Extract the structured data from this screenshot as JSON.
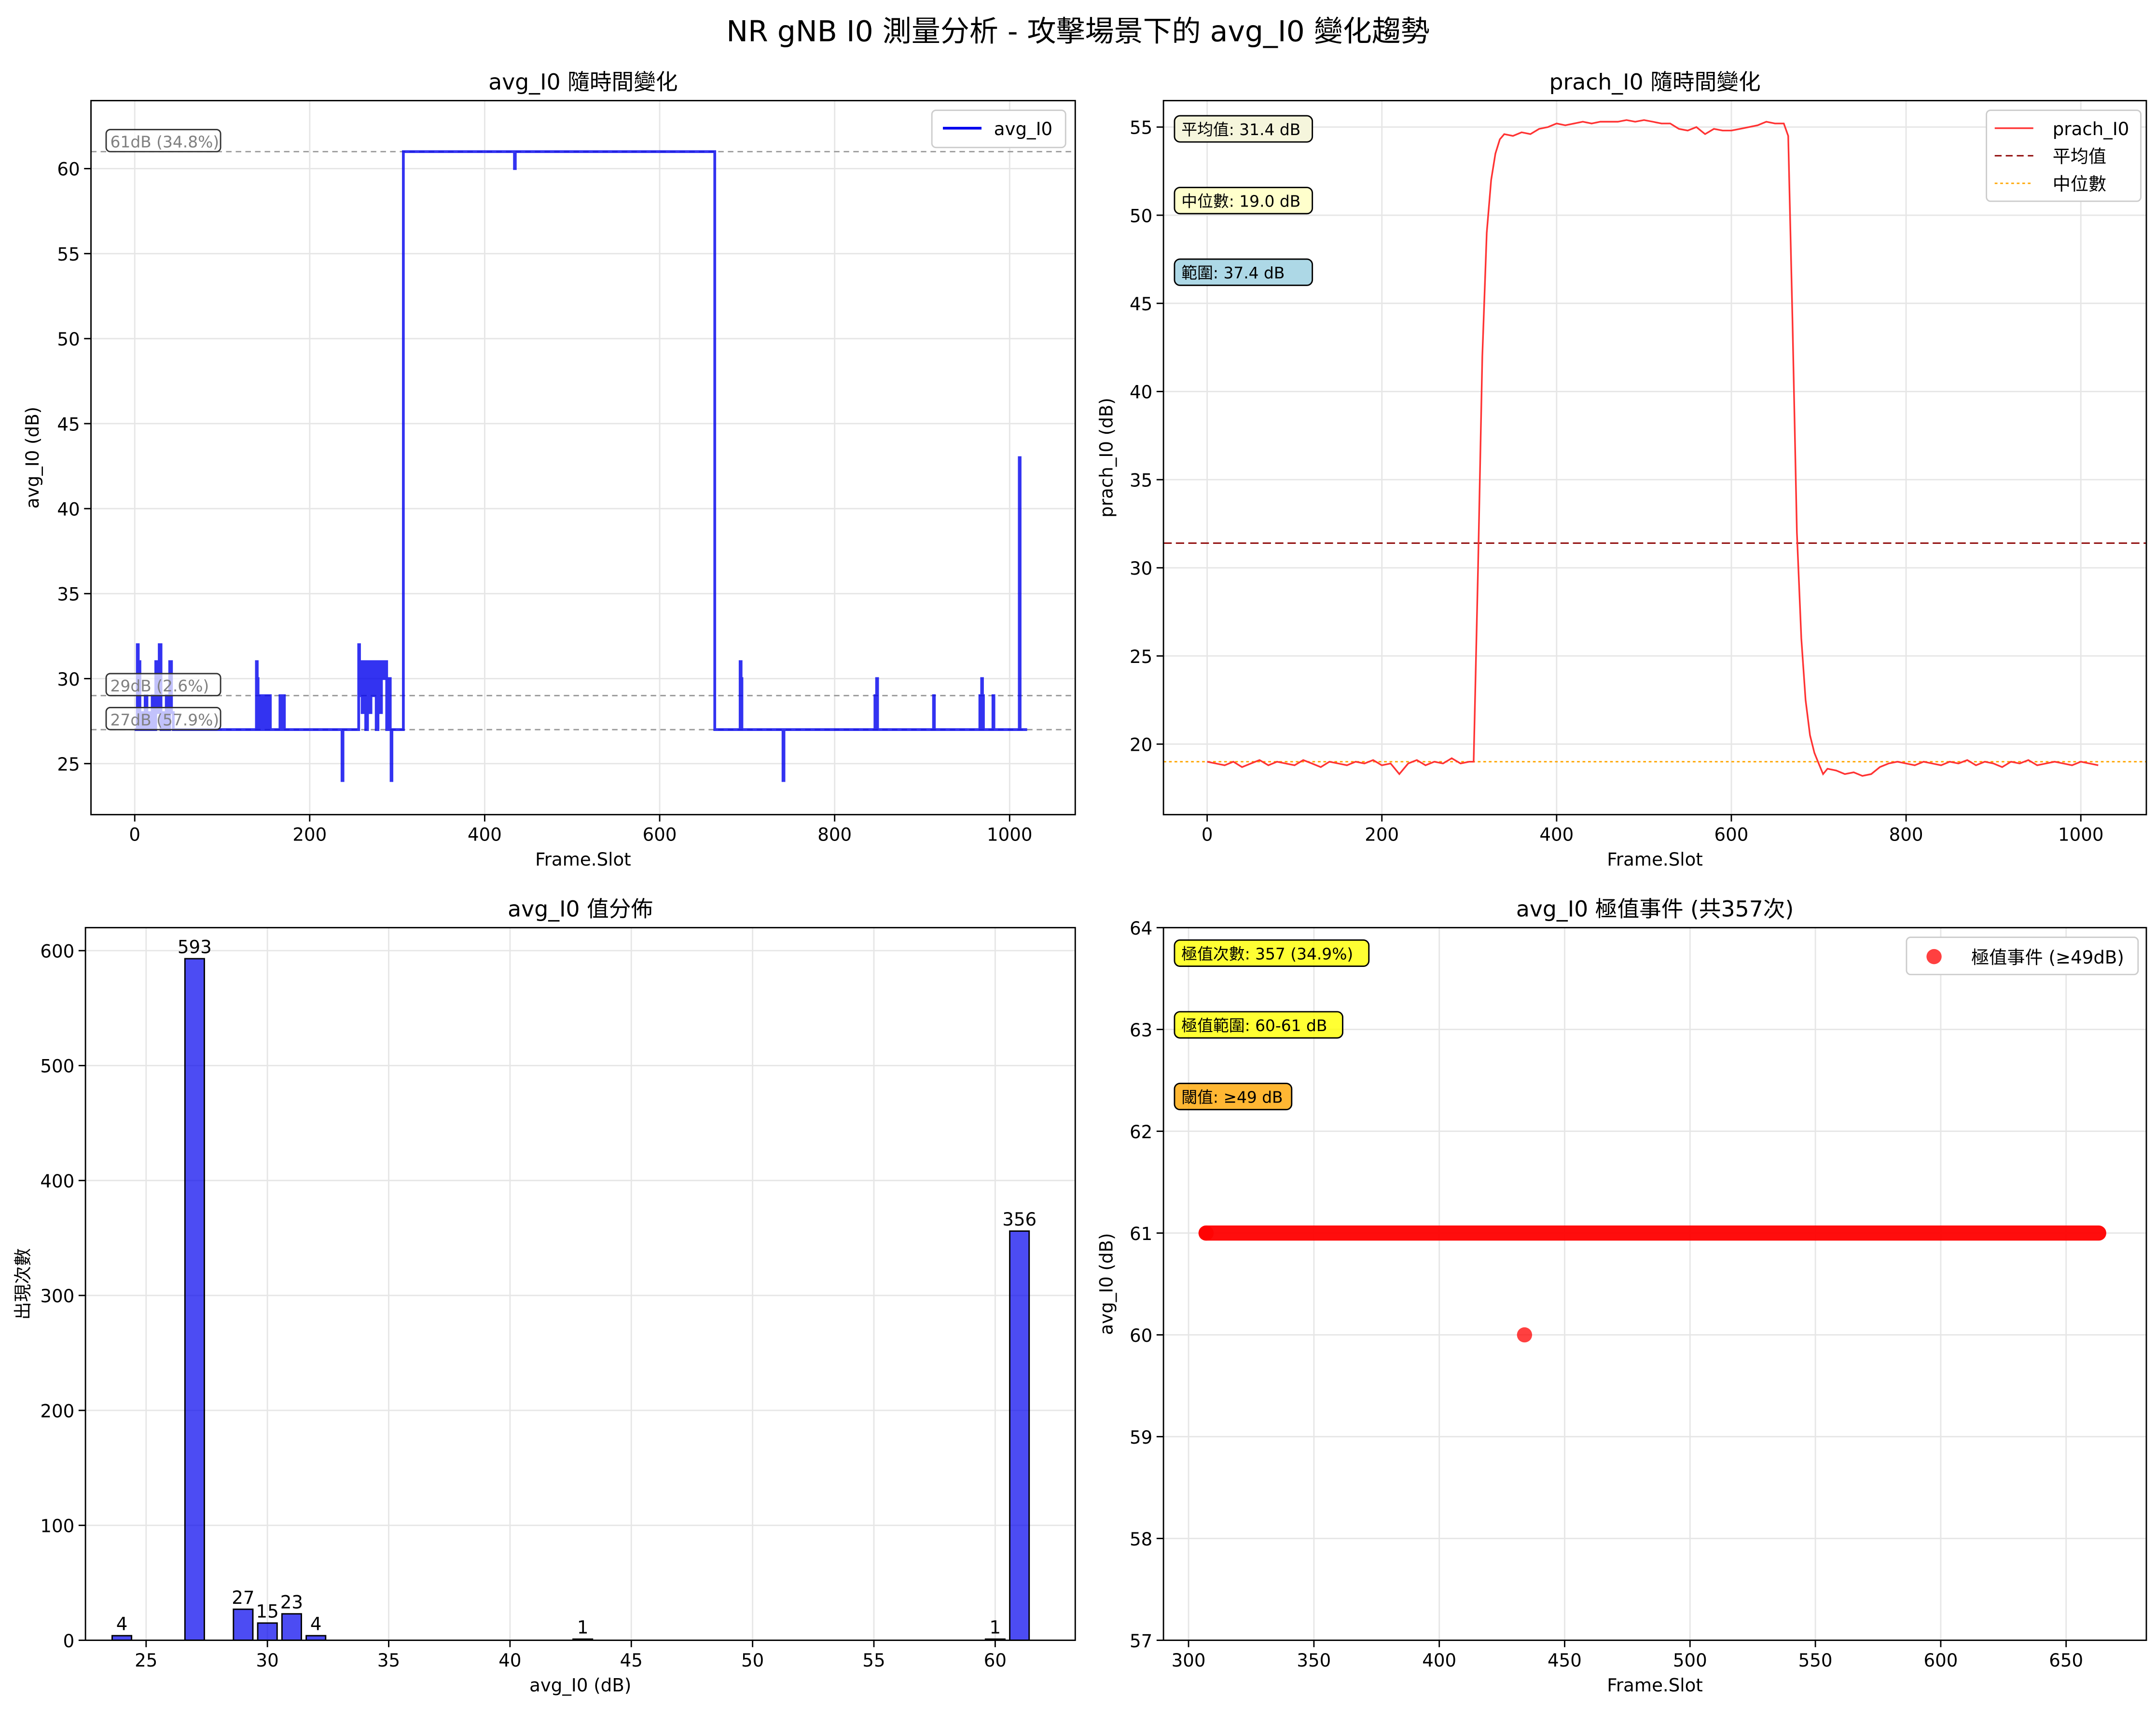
{
  "suptitle": "NR gNB I0 測量分析 - 攻擊場景下的 avg_I0 變化趨勢",
  "chart_data": [
    {
      "id": "p1",
      "type": "line",
      "title": "avg_I0 隨時間變化",
      "xlabel": "Frame.Slot",
      "ylabel": "avg_I0 (dB)",
      "xlim": [
        -50,
        1075
      ],
      "ylim": [
        22,
        64
      ],
      "xticks": [
        0,
        200,
        400,
        600,
        800,
        1000
      ],
      "yticks": [
        25,
        30,
        35,
        40,
        45,
        50,
        55,
        60
      ],
      "grid": true,
      "legend": {
        "position": "top-right",
        "entries": [
          "avg_I0"
        ]
      },
      "series": [
        {
          "name": "avg_I0",
          "color": "#0000ee",
          "x": [
            0,
            2,
            3,
            4,
            5,
            6,
            8,
            10,
            12,
            14,
            16,
            18,
            20,
            22,
            24,
            26,
            28,
            30,
            32,
            34,
            36,
            38,
            40,
            42,
            44,
            60,
            100,
            138,
            139,
            140,
            141,
            142,
            145,
            147,
            150,
            152,
            155,
            165,
            166,
            167,
            170,
            171,
            236,
            237,
            238,
            255,
            256,
            257,
            258,
            260,
            262,
            264,
            266,
            268,
            270,
            272,
            274,
            276,
            278,
            280,
            282,
            284,
            286,
            288,
            290,
            292,
            293,
            294,
            295,
            297,
            298,
            299,
            300,
            306,
            307,
            433,
            434,
            435,
            662,
            663,
            691,
            692,
            693,
            694,
            740,
            741,
            742,
            845,
            846,
            847,
            848,
            849,
            912,
            913,
            914,
            965,
            966,
            967,
            968,
            969,
            970,
            980,
            981,
            982,
            1010,
            1011,
            1012,
            1013,
            1020
          ],
          "y": [
            27,
            27,
            32,
            28,
            31,
            27,
            28,
            27,
            29,
            27,
            28,
            27,
            29,
            27,
            31,
            28,
            32,
            27,
            28,
            27,
            29,
            27,
            31,
            28,
            27,
            27,
            27,
            27,
            31,
            30,
            27,
            29,
            27,
            29,
            27,
            29,
            27,
            27,
            29,
            27,
            29,
            27,
            27,
            24,
            27,
            27,
            32,
            29,
            31,
            28,
            31,
            27,
            31,
            28,
            31,
            29,
            31,
            27,
            31,
            28,
            31,
            30,
            31,
            27,
            30,
            27,
            24,
            27,
            27,
            27,
            27,
            27,
            27,
            27,
            61,
            61,
            60,
            61,
            61,
            27,
            27,
            31,
            30,
            27,
            27,
            24,
            27,
            27,
            29,
            27,
            30,
            27,
            27,
            29,
            27,
            27,
            29,
            27,
            30,
            29,
            27,
            27,
            29,
            27,
            27,
            43,
            27,
            27,
            27
          ]
        }
      ],
      "hlines": [
        {
          "y": 61,
          "label": "61dB (34.8%)"
        },
        {
          "y": 29,
          "label": "29dB (2.6%)"
        },
        {
          "y": 27,
          "label": "27dB (57.9%)"
        }
      ]
    },
    {
      "id": "p2",
      "type": "line",
      "title": "prach_I0 隨時間變化",
      "xlabel": "Frame.Slot",
      "ylabel": "prach_I0 (dB)",
      "xlim": [
        -50,
        1075
      ],
      "ylim": [
        16,
        56.5
      ],
      "xticks": [
        0,
        200,
        400,
        600,
        800,
        1000
      ],
      "yticks": [
        20,
        25,
        30,
        35,
        40,
        45,
        50,
        55
      ],
      "grid": true,
      "legend": {
        "position": "top-right",
        "entries": [
          "prach_I0",
          "平均值",
          "中位數"
        ]
      },
      "mean": 31.4,
      "median": 19.0,
      "annotations": [
        "平均值: 31.4 dB",
        "中位數: 19.0 dB",
        "範圍: 37.4 dB"
      ],
      "annotation_colors": [
        "#f5f5dc",
        "#ffffcc",
        "#add8e6"
      ],
      "series": [
        {
          "name": "prach_I0",
          "color": "#ff3333",
          "x": [
            0,
            10,
            20,
            30,
            40,
            50,
            60,
            70,
            80,
            90,
            100,
            110,
            120,
            130,
            140,
            150,
            160,
            170,
            180,
            190,
            200,
            210,
            220,
            230,
            240,
            250,
            260,
            270,
            280,
            290,
            300,
            305,
            310,
            315,
            320,
            325,
            330,
            335,
            340,
            350,
            360,
            370,
            380,
            390,
            400,
            410,
            420,
            430,
            440,
            450,
            460,
            470,
            480,
            490,
            500,
            510,
            520,
            530,
            540,
            550,
            560,
            570,
            580,
            590,
            600,
            610,
            620,
            630,
            640,
            650,
            660,
            665,
            670,
            675,
            680,
            685,
            690,
            695,
            700,
            705,
            710,
            720,
            730,
            740,
            750,
            760,
            770,
            780,
            790,
            800,
            810,
            820,
            830,
            840,
            850,
            860,
            870,
            880,
            890,
            900,
            910,
            920,
            930,
            940,
            950,
            960,
            970,
            980,
            990,
            1000,
            1010,
            1020
          ],
          "y": [
            19.0,
            18.9,
            18.8,
            19.0,
            18.7,
            18.9,
            19.1,
            18.8,
            19.0,
            18.9,
            18.8,
            19.1,
            18.9,
            18.7,
            19.0,
            18.9,
            18.8,
            19.0,
            18.9,
            19.1,
            18.8,
            18.9,
            18.3,
            18.9,
            19.1,
            18.8,
            19.0,
            18.9,
            19.2,
            18.9,
            19.0,
            19.0,
            30.0,
            42.0,
            49.0,
            52.0,
            53.5,
            54.3,
            54.6,
            54.5,
            54.7,
            54.6,
            54.9,
            55.0,
            55.2,
            55.1,
            55.2,
            55.3,
            55.2,
            55.3,
            55.3,
            55.3,
            55.4,
            55.3,
            55.4,
            55.3,
            55.2,
            55.2,
            54.9,
            54.8,
            55.0,
            54.6,
            54.9,
            54.8,
            54.8,
            54.9,
            55.0,
            55.1,
            55.3,
            55.2,
            55.2,
            54.5,
            44.0,
            32.0,
            26.0,
            22.5,
            20.5,
            19.5,
            18.9,
            18.3,
            18.6,
            18.5,
            18.3,
            18.4,
            18.2,
            18.3,
            18.7,
            18.9,
            19.0,
            18.9,
            18.8,
            19.0,
            18.9,
            18.8,
            19.0,
            18.9,
            19.1,
            18.8,
            19.0,
            18.9,
            18.7,
            19.0,
            18.9,
            19.1,
            18.8,
            18.9,
            19.0,
            18.9,
            18.8,
            19.0,
            18.9,
            18.8
          ]
        }
      ]
    },
    {
      "id": "p3",
      "type": "bar",
      "title": "avg_I0 值分佈",
      "xlabel": "avg_I0 (dB)",
      "ylabel": "出現次數",
      "xlim": [
        22.5,
        63.3
      ],
      "ylim": [
        0,
        620
      ],
      "xticks": [
        25,
        30,
        35,
        40,
        45,
        50,
        55,
        60
      ],
      "yticks": [
        0,
        100,
        200,
        300,
        400,
        500,
        600
      ],
      "grid": true,
      "bar_width": 0.8,
      "color": "#0000ee",
      "x": [
        24,
        27,
        29,
        30,
        31,
        32,
        43,
        60,
        61
      ],
      "values": [
        4,
        593,
        27,
        15,
        23,
        4,
        1,
        1,
        356
      ]
    },
    {
      "id": "p4",
      "type": "scatter",
      "title": "avg_I0 極值事件 (共357次)",
      "xlabel": "Frame.Slot",
      "ylabel": "avg_I0 (dB)",
      "xlim": [
        290,
        682
      ],
      "ylim": [
        57,
        64
      ],
      "xticks": [
        300,
        350,
        400,
        450,
        500,
        550,
        600,
        650
      ],
      "yticks": [
        57,
        58,
        59,
        60,
        61,
        62,
        63,
        64
      ],
      "grid": true,
      "legend": {
        "position": "top-right",
        "entries": [
          "極值事件 (≥49dB)"
        ]
      },
      "annotations": [
        "極值次數: 357 (34.9%)",
        "極值範圍: 60-61 dB",
        "閾值: ≥49 dB"
      ],
      "annotation_colors": [
        "#ffff00",
        "#ffff00",
        "#ffa500"
      ],
      "series": [
        {
          "name": "極值事件 (≥49dB)",
          "color": "#ff0000",
          "x": [
            307,
            434
          ],
          "y": [
            61,
            60
          ],
          "segments": [
            {
              "x_from": 307,
              "x_to": 663,
              "y": 61
            }
          ]
        }
      ]
    }
  ]
}
